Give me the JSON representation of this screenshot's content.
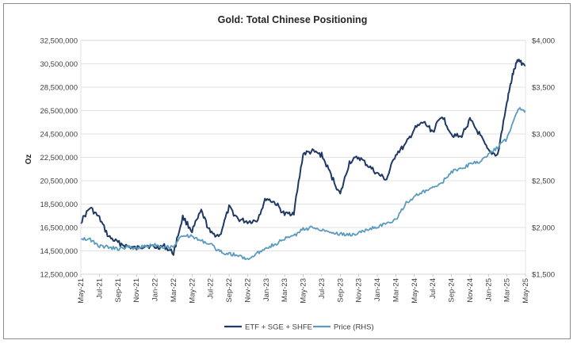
{
  "chart_data": {
    "type": "line",
    "title": "Gold: Total Chinese Positioning",
    "ylabel": "Oz",
    "y2label": "",
    "ylim": [
      12500000,
      32500000
    ],
    "y2lim": [
      1500,
      4000
    ],
    "yticks": [
      "32,500,000",
      "30,500,000",
      "28,500,000",
      "26,500,000",
      "24,500,000",
      "22,500,000",
      "20,500,000",
      "18,500,000",
      "16,500,000",
      "14,500,000",
      "12,500,000"
    ],
    "y2ticks": [
      "$4,000",
      "$3,500",
      "$3,000",
      "$2,500",
      "$2,000",
      "$1,500"
    ],
    "xticks": [
      "May-21",
      "Jul-21",
      "Sep-21",
      "Nov-21",
      "Jan-22",
      "Mar-22",
      "May-22",
      "Jul-22",
      "Sep-22",
      "Nov-22",
      "Jan-23",
      "Mar-23",
      "May-23",
      "Jul-23",
      "Sep-23",
      "Nov-23",
      "Jan-24",
      "Mar-24",
      "May-24",
      "Jul-24",
      "Sep-24",
      "Nov-24",
      "Jan-25",
      "Mar-25",
      "May-25"
    ],
    "grid": "horizontal",
    "legend_position": "bottom",
    "series": [
      {
        "name": "ETF + SGE + SHFE",
        "axis": "left",
        "color": "#1f3864",
        "x": [
          0,
          0.5,
          1,
          1.5,
          2,
          2.5,
          3,
          3.5,
          4,
          4.5,
          5,
          5.5,
          6,
          6.5,
          7,
          7.5,
          8,
          8.5,
          9,
          9.5,
          10,
          10.5,
          11,
          11.5,
          12,
          12.5,
          13,
          13.5,
          14,
          14.5,
          15,
          15.5,
          16,
          16.5,
          17,
          17.5,
          18,
          18.5,
          19,
          19.5,
          20,
          20.5,
          21,
          21.5,
          22,
          22.5,
          23,
          23.3,
          23.6,
          24
        ],
        "values": [
          17000000,
          18200000,
          17300000,
          15700000,
          15200000,
          14900000,
          14700000,
          15000000,
          14800000,
          14900000,
          14300000,
          17400000,
          16200000,
          17900000,
          16000000,
          15800000,
          18200000,
          17200000,
          17000000,
          17100000,
          19000000,
          18600000,
          17600000,
          17800000,
          22800000,
          23000000,
          22700000,
          21000000,
          19300000,
          22100000,
          22500000,
          21800000,
          21100000,
          20600000,
          22800000,
          23500000,
          24900000,
          25500000,
          24700000,
          26100000,
          24500000,
          24200000,
          25700000,
          24500000,
          23000000,
          22700000,
          27200000,
          29500000,
          30900000,
          30300000
        ]
      },
      {
        "name": "Price (RHS)",
        "axis": "right",
        "color": "#5b9bbf",
        "x": [
          0,
          0.5,
          1,
          1.5,
          2,
          2.5,
          3,
          3.5,
          4,
          4.5,
          5,
          5.5,
          6,
          6.5,
          7,
          7.5,
          8,
          8.5,
          9,
          9.5,
          10,
          10.5,
          11,
          11.5,
          12,
          12.5,
          13,
          13.5,
          14,
          14.5,
          15,
          15.5,
          16,
          16.5,
          17,
          17.5,
          18,
          18.5,
          19,
          19.5,
          20,
          20.5,
          21,
          21.5,
          22,
          22.5,
          23,
          23.3,
          23.6,
          24
        ],
        "values": [
          1890,
          1870,
          1800,
          1790,
          1770,
          1790,
          1780,
          1800,
          1820,
          1790,
          1800,
          1920,
          1900,
          1860,
          1820,
          1740,
          1720,
          1700,
          1660,
          1720,
          1790,
          1820,
          1880,
          1910,
          1980,
          2000,
          1980,
          1950,
          1930,
          1920,
          1940,
          1980,
          2010,
          2040,
          2080,
          2250,
          2330,
          2380,
          2420,
          2480,
          2600,
          2620,
          2680,
          2700,
          2780,
          2860,
          2950,
          3120,
          3270,
          3250
        ]
      }
    ]
  }
}
